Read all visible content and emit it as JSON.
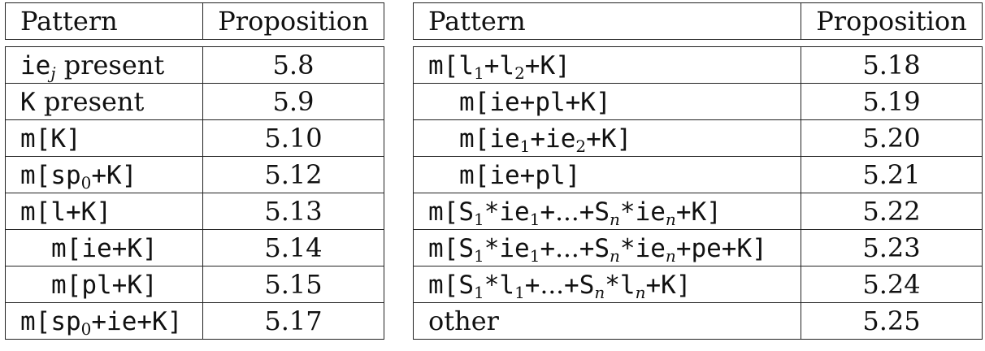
{
  "left_table": {
    "header": {
      "pattern": "Pattern",
      "proposition": "Proposition"
    },
    "rows": [
      {
        "pattern": "ie_j present",
        "proposition": "5.8"
      },
      {
        "pattern": "K present",
        "proposition": "5.9"
      },
      {
        "pattern": "m[K]",
        "proposition": "5.10"
      },
      {
        "pattern": "m[sp_0+K]",
        "proposition": "5.12"
      },
      {
        "pattern": "m[l+K]",
        "proposition": "5.13"
      },
      {
        "pattern": "m[ie+K]",
        "proposition": "5.14"
      },
      {
        "pattern": "m[pl+K]",
        "proposition": "5.15"
      },
      {
        "pattern": "m[sp_0+ie+K]",
        "proposition": "5.17"
      }
    ]
  },
  "right_table": {
    "header": {
      "pattern": "Pattern",
      "proposition": "Proposition"
    },
    "rows": [
      {
        "pattern": "m[l_1+l_2+K]",
        "proposition": "5.18"
      },
      {
        "pattern": "m[ie+pl+K]",
        "proposition": "5.19"
      },
      {
        "pattern": "m[ie_1+ie_2+K]",
        "proposition": "5.20"
      },
      {
        "pattern": "m[ie+pl]",
        "proposition": "5.21"
      },
      {
        "pattern": "m[S_1*ie_1+...+S_n*ie_n+K]",
        "proposition": "5.22"
      },
      {
        "pattern": "m[S_1*ie_1+...+S_n*ie_n+pe+K]",
        "proposition": "5.23"
      },
      {
        "pattern": "m[S_1*l_1+...+S_n*l_n+K]",
        "proposition": "5.24"
      },
      {
        "pattern": "other",
        "proposition": "5.25"
      }
    ]
  }
}
